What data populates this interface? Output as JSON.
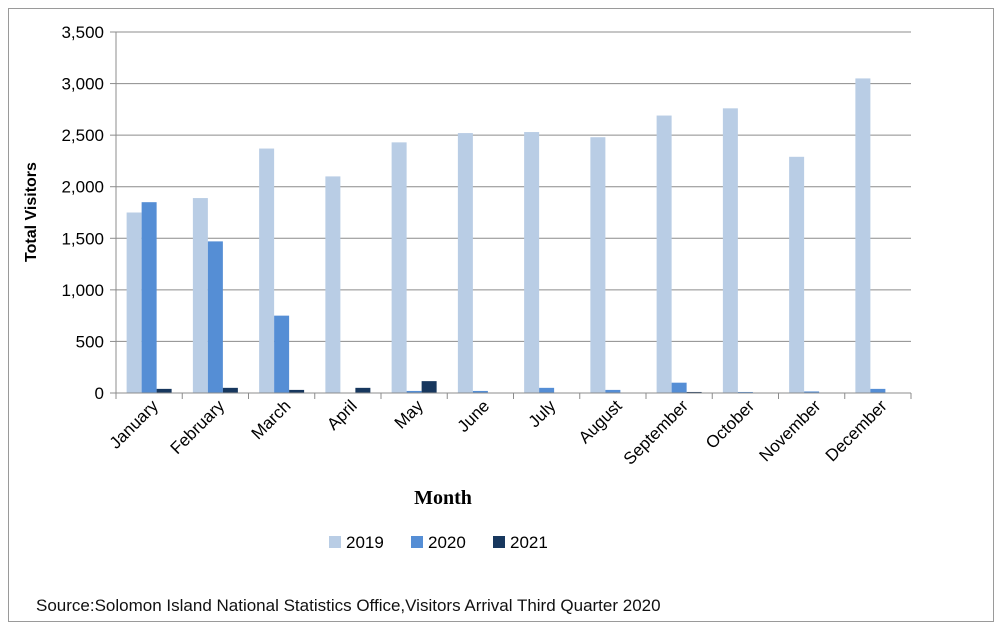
{
  "chart_data": {
    "type": "bar",
    "xlabel": "Month",
    "ylabel": "Total Visitors",
    "ylim": [
      0,
      3500
    ],
    "yticks": [
      0,
      500,
      1000,
      1500,
      2000,
      2500,
      3000,
      3500
    ],
    "ytick_labels": [
      "0",
      "500",
      "1,000",
      "1,500",
      "2,000",
      "2,500",
      "3,000",
      "3,500"
    ],
    "grid": true,
    "legend_position": "bottom",
    "categories": [
      "January",
      "February",
      "March",
      "April",
      "May",
      "June",
      "July",
      "August",
      "September",
      "October",
      "November",
      "December"
    ],
    "series": [
      {
        "name": "2019",
        "color": "#b9cde5",
        "values": [
          1750,
          1890,
          2370,
          2100,
          2430,
          2520,
          2530,
          2480,
          2690,
          2760,
          2290,
          3050
        ]
      },
      {
        "name": "2020",
        "color": "#558ed5",
        "values": [
          1850,
          1470,
          750,
          0,
          20,
          20,
          50,
          30,
          100,
          10,
          15,
          40
        ]
      },
      {
        "name": "2021",
        "color": "#17375e",
        "values": [
          40,
          50,
          30,
          50,
          115,
          0,
          0,
          0,
          10,
          0,
          0,
          0
        ]
      }
    ]
  },
  "source_text": "Source:Solomon Island National Statistics Office,Visitors Arrival Third Quarter 2020"
}
